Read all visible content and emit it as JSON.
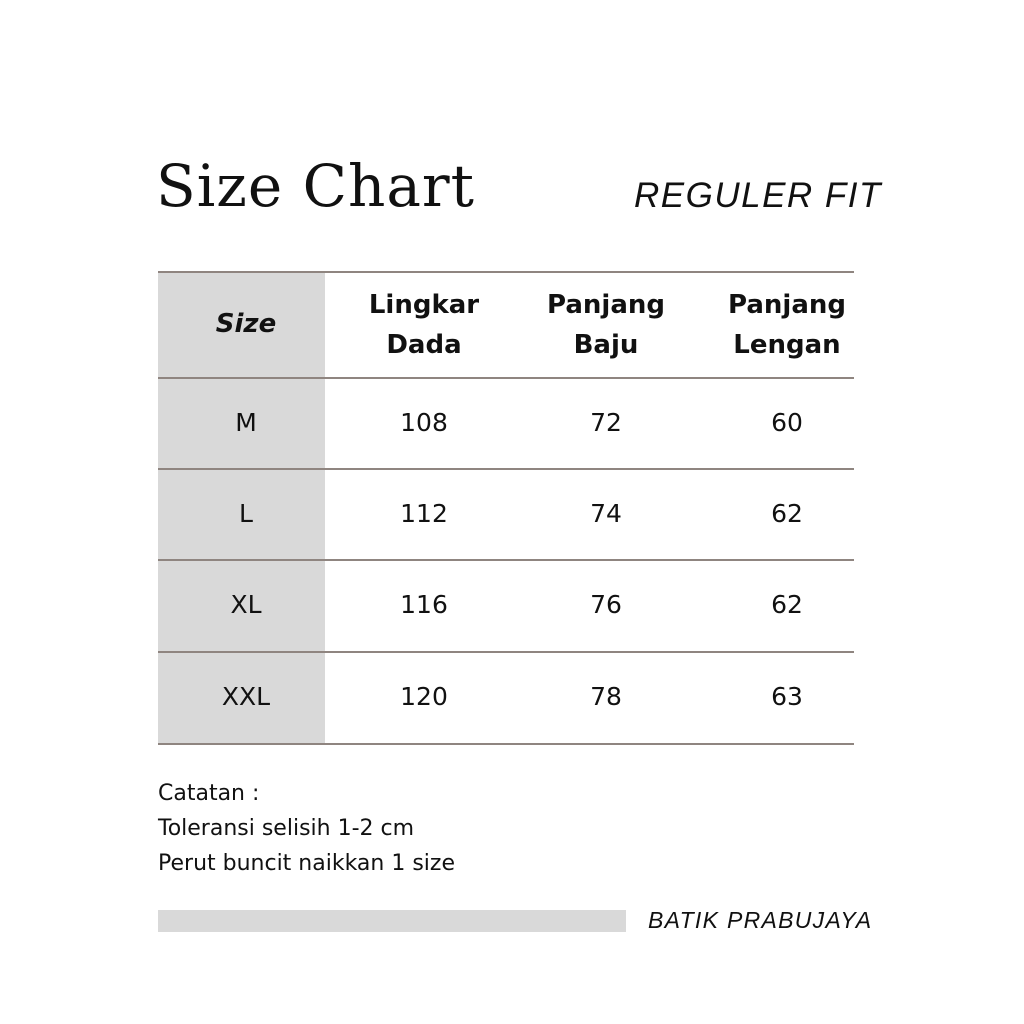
{
  "title": "Size Chart",
  "fit": "REGULER FIT",
  "table": {
    "headers": [
      {
        "line1": "Size",
        "line2": ""
      },
      {
        "line1": "Lingkar",
        "line2": "Dada"
      },
      {
        "line1": "Panjang",
        "line2": "Baju"
      },
      {
        "line1": "Panjang",
        "line2": "Lengan"
      }
    ],
    "rows": [
      [
        "M",
        "108",
        "72",
        "60"
      ],
      [
        "L",
        "112",
        "74",
        "62"
      ],
      [
        "XL",
        "116",
        "76",
        "62"
      ],
      [
        "XXL",
        "120",
        "78",
        "63"
      ]
    ]
  },
  "notes": [
    "Catatan :",
    "Toleransi selisih 1-2 cm",
    "Perut buncit naikkan 1 size"
  ],
  "brand": "BATIK PRABUJAYA",
  "colors": {
    "size_column": "#d9d9d9",
    "rule": "#8f8580",
    "footer_bar": "#d9d9d9"
  }
}
